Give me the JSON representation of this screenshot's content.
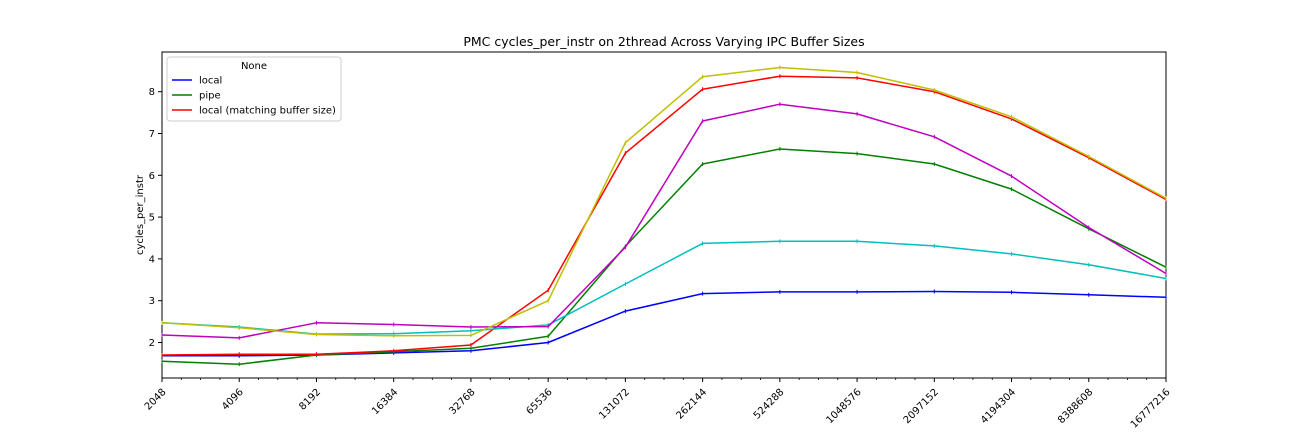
{
  "chart_data": {
    "type": "line",
    "title": "PMC cycles_per_instr on 2thread Across Varying IPC Buffer Sizes",
    "xlabel": "",
    "ylabel": "cycles_per_instr",
    "x_scale": "log2",
    "categories": [
      "2048",
      "4096",
      "8192",
      "16384",
      "32768",
      "65536",
      "131072",
      "262144",
      "524288",
      "1048576",
      "2097152",
      "4194304",
      "8388608",
      "16777216"
    ],
    "yticks": [
      2,
      3,
      4,
      5,
      6,
      7,
      8
    ],
    "ylim": [
      1.15,
      8.95
    ],
    "grid": false,
    "legend": {
      "title": "None",
      "placement": "top-left",
      "entries": [
        "local",
        "pipe",
        "local (matching buffer size)"
      ]
    },
    "series": [
      {
        "name": "local",
        "color": "#0000ff",
        "values": [
          1.68,
          1.68,
          1.7,
          1.75,
          1.8,
          2.0,
          2.75,
          3.17,
          3.21,
          3.21,
          3.22,
          3.2,
          3.14,
          3.08
        ]
      },
      {
        "name": "pipe",
        "color": "#008000",
        "values": [
          1.55,
          1.48,
          1.7,
          1.78,
          1.86,
          2.15,
          4.3,
          6.27,
          6.63,
          6.52,
          6.27,
          5.67,
          4.72,
          3.8
        ]
      },
      {
        "name": "local (matching buffer size)",
        "color": "#ff0000",
        "values": [
          1.7,
          1.72,
          1.72,
          1.8,
          1.94,
          3.25,
          6.53,
          8.06,
          8.37,
          8.33,
          8.0,
          7.35,
          6.42,
          5.42
        ]
      },
      {
        "color": "#00bfbf",
        "values": [
          2.47,
          2.37,
          2.2,
          2.21,
          2.28,
          2.42,
          3.4,
          4.37,
          4.42,
          4.42,
          4.31,
          4.12,
          3.86,
          3.53
        ]
      },
      {
        "color": "#bf00bf",
        "values": [
          2.18,
          2.11,
          2.47,
          2.43,
          2.37,
          2.38,
          4.28,
          7.3,
          7.7,
          7.47,
          6.92,
          5.98,
          4.75,
          3.65
        ]
      },
      {
        "color": "#bfbf00",
        "values": [
          2.47,
          2.35,
          2.19,
          2.16,
          2.17,
          3.0,
          6.78,
          8.36,
          8.58,
          8.46,
          8.04,
          7.4,
          6.45,
          5.45
        ]
      }
    ]
  }
}
